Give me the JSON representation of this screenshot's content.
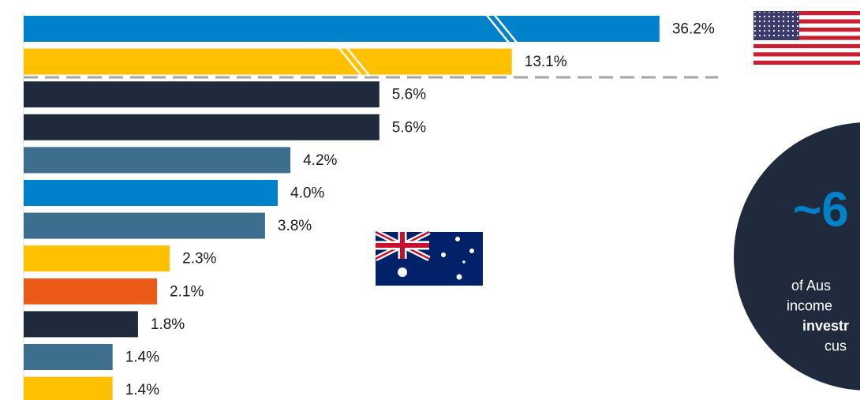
{
  "chart_data": {
    "type": "bar",
    "orientation": "horizontal",
    "values": [
      36.2,
      13.1,
      5.6,
      5.6,
      4.2,
      4.0,
      3.8,
      2.3,
      2.1,
      1.8,
      1.4,
      1.4
    ],
    "value_labels": [
      "36.2%",
      "13.1%",
      "5.6%",
      "5.6%",
      "4.2%",
      "4.0%",
      "3.8%",
      "2.3%",
      "2.1%",
      "1.8%",
      "1.4%",
      "1.4%"
    ],
    "colors": [
      "#0082ca",
      "#ffc000",
      "#1f2a3c",
      "#1f2a3c",
      "#3e6e8e",
      "#0082ca",
      "#3e6e8e",
      "#ffc000",
      "#e95b16",
      "#1f2a3c",
      "#3e6e8e",
      "#ffc000"
    ],
    "callout": {
      "headline": "~6",
      "lines": [
        "of Aus",
        "income",
        "investr",
        "cus"
      ]
    }
  }
}
